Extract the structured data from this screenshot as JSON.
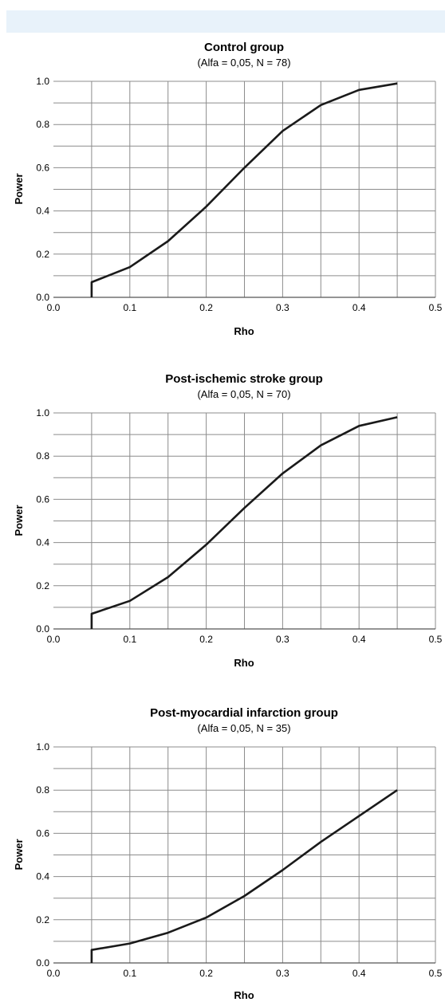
{
  "page": {
    "band_color": "#e8f2fa"
  },
  "chart_data": [
    {
      "type": "line",
      "title": "Control group",
      "subtitle": "(Alfa = 0,05,  N = 78)",
      "xlabel": "Rho",
      "ylabel": "Power",
      "xlim": [
        0,
        0.5
      ],
      "ylim": [
        0,
        1
      ],
      "x_ticks": [
        "0.0",
        "0.1",
        "0.2",
        "0.3",
        "0.4",
        "0.5"
      ],
      "y_ticks": [
        "0.0",
        "0.2",
        "0.4",
        "0.6",
        "0.8",
        "1.0"
      ],
      "grid": true,
      "line_color": "#1a1a1a",
      "series": [
        {
          "x": [
            0.05,
            0.05,
            0.1,
            0.15,
            0.2,
            0.25,
            0.3,
            0.35,
            0.4,
            0.45
          ],
          "values": [
            0.0,
            0.07,
            0.14,
            0.26,
            0.42,
            0.6,
            0.77,
            0.89,
            0.96,
            0.99
          ]
        }
      ]
    },
    {
      "type": "line",
      "title": "Post-ischemic stroke group",
      "subtitle": "(Alfa = 0,05,  N = 70)",
      "xlabel": "Rho",
      "ylabel": "Power",
      "xlim": [
        0,
        0.5
      ],
      "ylim": [
        0,
        1
      ],
      "x_ticks": [
        "0.0",
        "0.1",
        "0.2",
        "0.3",
        "0.4",
        "0.5"
      ],
      "y_ticks": [
        "0.0",
        "0.2",
        "0.4",
        "0.6",
        "0.8",
        "1.0"
      ],
      "grid": true,
      "line_color": "#1a1a1a",
      "series": [
        {
          "x": [
            0.05,
            0.05,
            0.1,
            0.15,
            0.2,
            0.25,
            0.3,
            0.35,
            0.4,
            0.45
          ],
          "values": [
            0.0,
            0.07,
            0.13,
            0.24,
            0.39,
            0.56,
            0.72,
            0.85,
            0.94,
            0.98
          ]
        }
      ]
    },
    {
      "type": "line",
      "title": "Post-myocardial infarction group",
      "subtitle": "(Alfa = 0,05,  N = 35)",
      "xlabel": "Rho",
      "ylabel": "Power",
      "xlim": [
        0,
        0.5
      ],
      "ylim": [
        0,
        1
      ],
      "x_ticks": [
        "0.0",
        "0.1",
        "0.2",
        "0.3",
        "0.4",
        "0.5"
      ],
      "y_ticks": [
        "0.0",
        "0.2",
        "0.4",
        "0.6",
        "0.8",
        "1.0"
      ],
      "grid": true,
      "line_color": "#1a1a1a",
      "series": [
        {
          "x": [
            0.05,
            0.05,
            0.1,
            0.15,
            0.2,
            0.25,
            0.3,
            0.35,
            0.4,
            0.45
          ],
          "values": [
            0.0,
            0.06,
            0.09,
            0.14,
            0.21,
            0.31,
            0.43,
            0.56,
            0.68,
            0.8
          ]
        }
      ]
    }
  ]
}
